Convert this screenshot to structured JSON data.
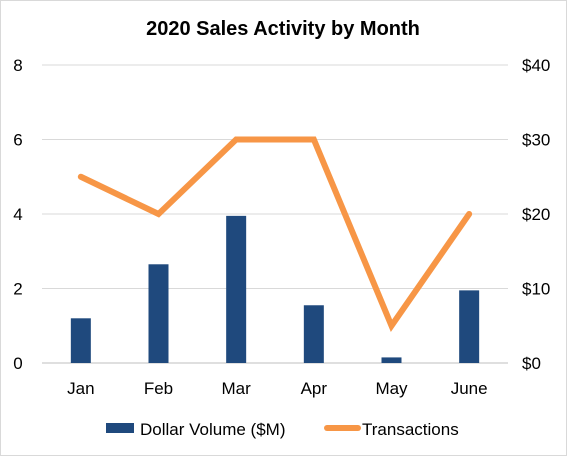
{
  "chart_data": {
    "type": "bar",
    "title": "2020 Sales Activity by Month",
    "categories": [
      "Jan",
      "Feb",
      "Mar",
      "Apr",
      "May",
      "June"
    ],
    "series": [
      {
        "name": "Dollar Volume ($M)",
        "type": "bar",
        "axis": "left",
        "color": "#1f497d",
        "values": [
          1.2,
          2.65,
          3.95,
          1.55,
          0.15,
          1.95
        ]
      },
      {
        "name": "Transactions",
        "type": "line",
        "axis": "right",
        "color": "#f79646",
        "values": [
          25,
          20,
          30,
          30,
          5,
          20
        ]
      }
    ],
    "left_axis": {
      "ylim": [
        0,
        8
      ],
      "ticks": [
        "0",
        "2",
        "4",
        "6",
        "8"
      ],
      "tick_values": [
        0,
        2,
        4,
        6,
        8
      ]
    },
    "right_axis": {
      "ylim": [
        0,
        40
      ],
      "ticks": [
        "$0",
        "$10",
        "$20",
        "$30",
        "$40"
      ],
      "tick_values": [
        0,
        10,
        20,
        30,
        40
      ]
    },
    "grid": true,
    "legend": "bottom"
  }
}
